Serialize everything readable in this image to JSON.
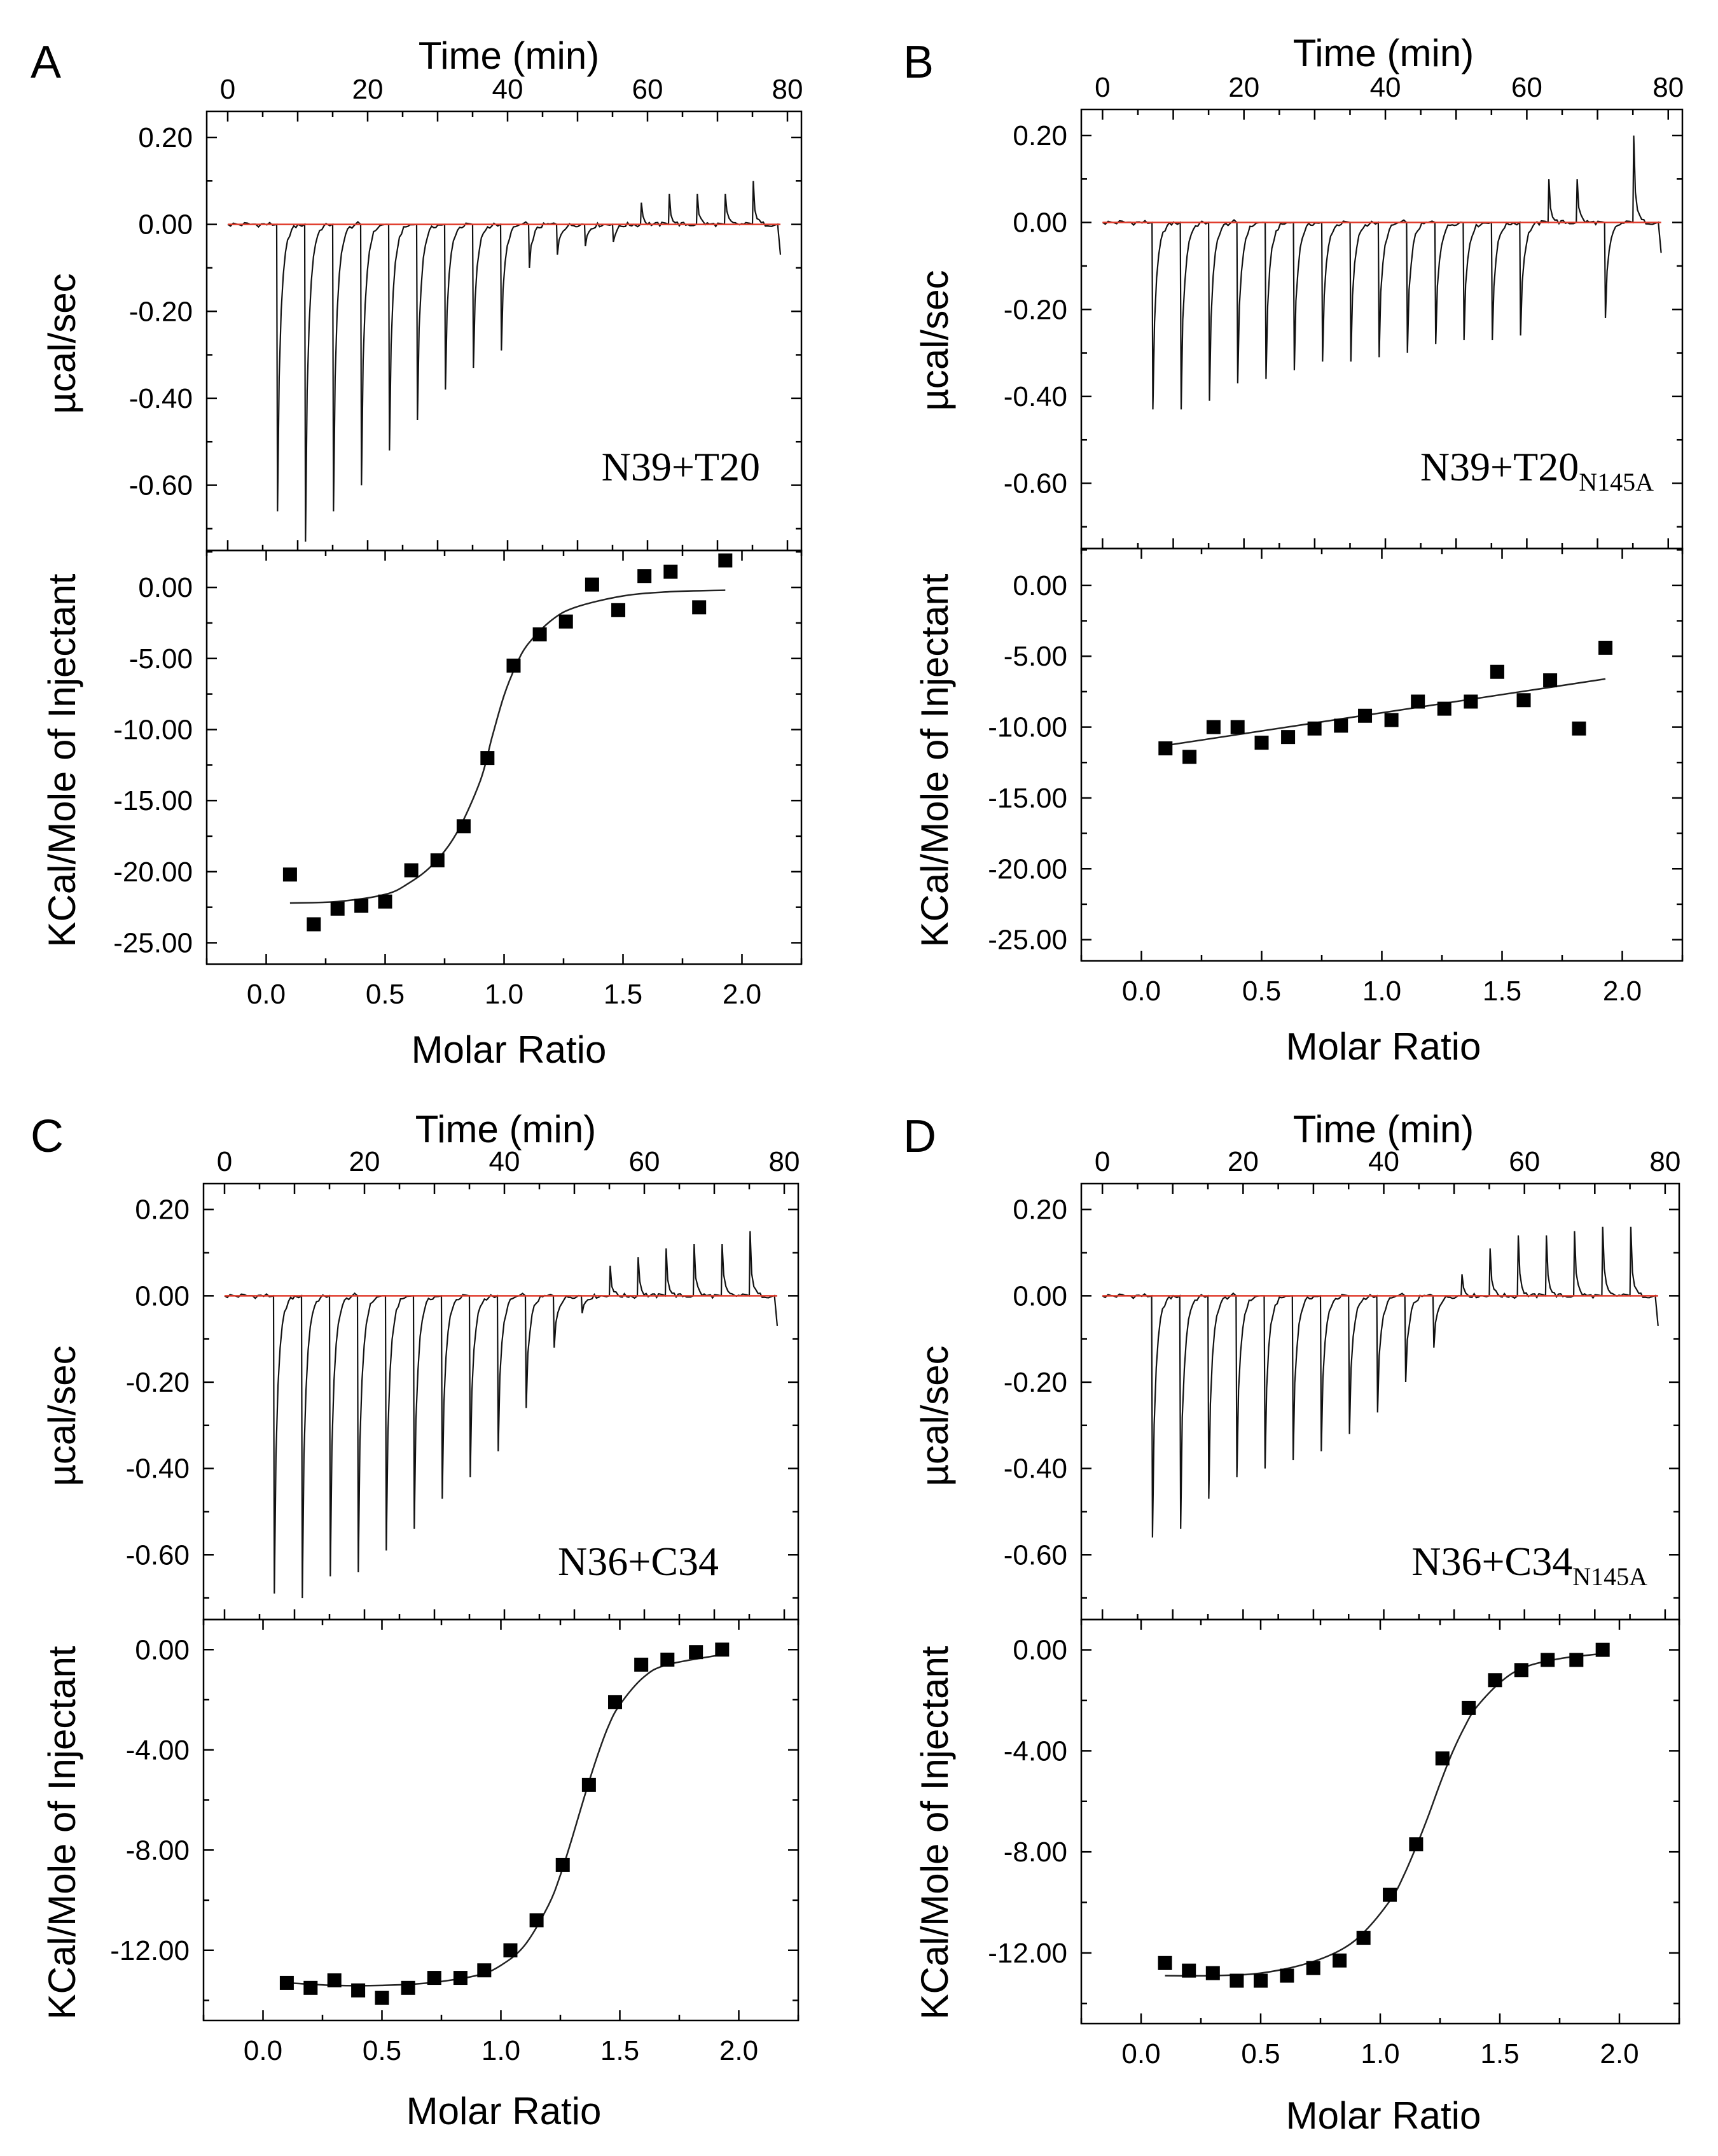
{
  "figure": {
    "shared_labels": {
      "time_axis": "Time (min)",
      "power_axis": "µcal/sec",
      "enthalpy_axis": "KCal/Mole of Injectant",
      "ratio_axis": "Molar Ratio"
    }
  },
  "chart_data": [
    {
      "panel": "A",
      "type": "line",
      "subtype": "isothermal titration calorimetry (raw thermogram + integrated heats)",
      "annotation": {
        "main": "N39+T20",
        "subscript": ""
      },
      "top": {
        "xlabel": "Time (min)",
        "ylabel": "µcal/sec",
        "xlim": [
          -3,
          82
        ],
        "ylim": [
          -0.75,
          0.26
        ],
        "xticks": [
          "0",
          "20",
          "40",
          "60",
          "80"
        ],
        "yticks": [
          "0.20",
          "0.00",
          "-0.20",
          "-0.40",
          "-0.60"
        ],
        "ytick_values": [
          0.2,
          0.0,
          -0.2,
          -0.4,
          -0.6
        ],
        "trace_start": 0,
        "trace_end": 79,
        "injection_times": [
          7,
          11,
          15,
          19,
          23,
          27,
          31,
          35,
          39,
          43,
          47,
          51,
          55,
          59,
          63,
          67,
          71,
          75
        ],
        "injection_peaks": [
          -0.66,
          -0.73,
          -0.66,
          -0.6,
          -0.52,
          -0.45,
          -0.38,
          -0.33,
          -0.29,
          -0.1,
          -0.07,
          -0.05,
          -0.04,
          0.05,
          0.07,
          0.07,
          0.07,
          0.1
        ]
      },
      "bottom": {
        "xlabel": "Molar Ratio",
        "ylabel": "KCal/Mole of Injectant",
        "xlim": [
          -0.25,
          2.25
        ],
        "ylim": [
          -26.5,
          2.6
        ],
        "xticks": [
          "0.0",
          "0.5",
          "1.0",
          "1.5",
          "2.0"
        ],
        "xtick_values": [
          0,
          0.5,
          1,
          1.5,
          2
        ],
        "yticks": [
          "0.00",
          "-5.00",
          "-10.00",
          "-15.00",
          "-20.00",
          "-25.00"
        ],
        "ytick_values": [
          0,
          -5,
          -10,
          -15,
          -20,
          -25
        ],
        "points": {
          "x": [
            0.1,
            0.2,
            0.3,
            0.4,
            0.5,
            0.61,
            0.72,
            0.83,
            0.93,
            1.04,
            1.15,
            1.26,
            1.37,
            1.48,
            1.59,
            1.7,
            1.82,
            1.93
          ],
          "y": [
            -20.2,
            -23.7,
            -22.6,
            -22.4,
            -22.1,
            -19.9,
            -19.2,
            -16.8,
            -12.0,
            -5.5,
            -3.3,
            -2.4,
            0.2,
            -1.6,
            0.8,
            1.1,
            -1.4,
            1.9
          ]
        },
        "fit": {
          "x": [
            0.1,
            0.3,
            0.5,
            0.6,
            0.7,
            0.8,
            0.9,
            0.95,
            1.0,
            1.05,
            1.1,
            1.2,
            1.3,
            1.5,
            1.7,
            1.93
          ],
          "y": [
            -22.2,
            -22.1,
            -21.6,
            -20.8,
            -19.5,
            -17.3,
            -13.6,
            -10.5,
            -7.6,
            -5.5,
            -4.0,
            -2.3,
            -1.4,
            -0.6,
            -0.3,
            -0.2
          ]
        }
      }
    },
    {
      "panel": "B",
      "type": "line",
      "subtype": "isothermal titration calorimetry (raw thermogram + integrated heats)",
      "annotation": {
        "main": "N39+T20",
        "subscript": "N145A"
      },
      "top": {
        "xlabel": "Time (min)",
        "ylabel": "µcal/sec",
        "xlim": [
          -3,
          82
        ],
        "ylim": [
          -0.75,
          0.26
        ],
        "xticks": [
          "0",
          "20",
          "40",
          "60",
          "80"
        ],
        "yticks": [
          "0.20",
          "0.00",
          "-0.20",
          "-0.40",
          "-0.60"
        ],
        "ytick_values": [
          0.2,
          0.0,
          -0.2,
          -0.4,
          -0.6
        ],
        "trace_start": 0,
        "trace_end": 79,
        "injection_times": [
          7,
          11,
          15,
          19,
          23,
          27,
          31,
          35,
          39,
          43,
          47,
          51,
          55,
          59,
          63,
          67,
          71,
          75
        ],
        "injection_peaks": [
          -0.43,
          -0.43,
          -0.41,
          -0.37,
          -0.36,
          -0.34,
          -0.32,
          -0.32,
          -0.31,
          -0.3,
          -0.28,
          -0.27,
          -0.27,
          -0.26,
          0.1,
          0.1,
          -0.22,
          0.2
        ]
      },
      "bottom": {
        "xlabel": "Molar Ratio",
        "ylabel": "KCal/Mole of Injectant",
        "xlim": [
          -0.25,
          2.25
        ],
        "ylim": [
          -26.5,
          2.6
        ],
        "xticks": [
          "0.0",
          "0.5",
          "1.0",
          "1.5",
          "2.0"
        ],
        "xtick_values": [
          0,
          0.5,
          1,
          1.5,
          2
        ],
        "yticks": [
          "0.00",
          "-5.00",
          "-10.00",
          "-15.00",
          "-20.00",
          "-25.00"
        ],
        "ytick_values": [
          0,
          -5,
          -10,
          -15,
          -20,
          -25
        ],
        "points": {
          "x": [
            0.1,
            0.2,
            0.3,
            0.4,
            0.5,
            0.61,
            0.72,
            0.83,
            0.93,
            1.04,
            1.15,
            1.26,
            1.37,
            1.48,
            1.59,
            1.7,
            1.82,
            1.93
          ],
          "y": [
            -11.5,
            -12.1,
            -10.0,
            -10.0,
            -11.1,
            -10.7,
            -10.1,
            -9.9,
            -9.2,
            -9.5,
            -8.2,
            -8.7,
            -8.2,
            -6.1,
            -8.1,
            -6.7,
            -10.1,
            -4.4
          ]
        },
        "fit": {
          "x": [
            0.1,
            1.93
          ],
          "y": [
            -11.3,
            -6.6
          ]
        }
      }
    },
    {
      "panel": "C",
      "type": "line",
      "subtype": "isothermal titration calorimetry (raw thermogram + integrated heats)",
      "annotation": {
        "main": "N36+C34",
        "subscript": ""
      },
      "top": {
        "xlabel": "Time (min)",
        "ylabel": "µcal/sec",
        "xlim": [
          -3,
          82
        ],
        "ylim": [
          -0.75,
          0.26
        ],
        "xticks": [
          "0",
          "20",
          "40",
          "60",
          "80"
        ],
        "yticks": [
          "0.20",
          "0.00",
          "-0.20",
          "-0.40",
          "-0.60"
        ],
        "ytick_values": [
          0.2,
          0.0,
          -0.2,
          -0.4,
          -0.6
        ],
        "trace_start": 0,
        "trace_end": 79,
        "injection_times": [
          7,
          11,
          15,
          19,
          23,
          27,
          31,
          35,
          39,
          43,
          47,
          51,
          55,
          59,
          63,
          67,
          71,
          75
        ],
        "injection_peaks": [
          -0.69,
          -0.7,
          -0.65,
          -0.64,
          -0.59,
          -0.54,
          -0.47,
          -0.42,
          -0.36,
          -0.26,
          -0.12,
          -0.04,
          0.07,
          0.09,
          0.11,
          0.12,
          0.12,
          0.15
        ]
      },
      "bottom": {
        "xlabel": "Molar Ratio",
        "ylabel": "KCal/Mole of Injectant",
        "xlim": [
          -0.25,
          2.25
        ],
        "ylim": [
          -14.8,
          1.2
        ],
        "xticks": [
          "0.0",
          "0.5",
          "1.0",
          "1.5",
          "2.0"
        ],
        "xtick_values": [
          0,
          0.5,
          1,
          1.5,
          2
        ],
        "yticks": [
          "0.00",
          "-4.00",
          "-8.00",
          "-12.00"
        ],
        "ytick_values": [
          0,
          -4,
          -8,
          -12
        ],
        "points": {
          "x": [
            0.1,
            0.2,
            0.3,
            0.4,
            0.5,
            0.61,
            0.72,
            0.83,
            0.93,
            1.04,
            1.15,
            1.26,
            1.37,
            1.48,
            1.59,
            1.7,
            1.82,
            1.93
          ],
          "y": [
            -13.3,
            -13.5,
            -13.2,
            -13.6,
            -13.9,
            -13.5,
            -13.1,
            -13.1,
            -12.8,
            -12.0,
            -10.8,
            -8.6,
            -5.4,
            -2.1,
            -0.6,
            -0.4,
            -0.1,
            0.0
          ]
        },
        "fit": {
          "x": [
            0.1,
            0.3,
            0.5,
            0.7,
            0.9,
            1.0,
            1.1,
            1.2,
            1.25,
            1.3,
            1.35,
            1.4,
            1.45,
            1.5,
            1.6,
            1.7,
            1.93
          ],
          "y": [
            -13.3,
            -13.4,
            -13.4,
            -13.3,
            -13.0,
            -12.6,
            -11.8,
            -10.2,
            -9.0,
            -7.5,
            -5.9,
            -4.4,
            -3.1,
            -2.2,
            -1.1,
            -0.6,
            -0.2
          ]
        }
      }
    },
    {
      "panel": "D",
      "type": "line",
      "subtype": "isothermal titration calorimetry (raw thermogram + integrated heats)",
      "annotation": {
        "main": "N36+C34",
        "subscript": "N145A"
      },
      "top": {
        "xlabel": "Time (min)",
        "ylabel": "µcal/sec",
        "xlim": [
          -3,
          82
        ],
        "ylim": [
          -0.75,
          0.26
        ],
        "xticks": [
          "0",
          "20",
          "40",
          "60",
          "80"
        ],
        "yticks": [
          "0.20",
          "0.00",
          "-0.20",
          "-0.40",
          "-0.60"
        ],
        "ytick_values": [
          0.2,
          0.0,
          -0.2,
          -0.4,
          -0.6
        ],
        "trace_start": 0,
        "trace_end": 79,
        "injection_times": [
          7,
          11,
          15,
          19,
          23,
          27,
          31,
          35,
          39,
          43,
          47,
          51,
          55,
          59,
          63,
          67,
          71,
          75
        ],
        "injection_peaks": [
          -0.56,
          -0.54,
          -0.47,
          -0.42,
          -0.4,
          -0.38,
          -0.36,
          -0.32,
          -0.27,
          -0.2,
          -0.12,
          0.05,
          0.11,
          0.14,
          0.14,
          0.15,
          0.16,
          0.16
        ]
      },
      "bottom": {
        "xlabel": "Molar Ratio",
        "ylabel": "KCal/Mole of Injectant",
        "xlim": [
          -0.25,
          2.25
        ],
        "ylim": [
          -14.8,
          1.2
        ],
        "xticks": [
          "0.0",
          "0.5",
          "1.0",
          "1.5",
          "2.0"
        ],
        "xtick_values": [
          0,
          0.5,
          1,
          1.5,
          2
        ],
        "yticks": [
          "0.00",
          "-4.00",
          "-8.00",
          "-12.00"
        ],
        "ytick_values": [
          0,
          -4,
          -8,
          -12
        ],
        "points": {
          "x": [
            0.1,
            0.2,
            0.3,
            0.4,
            0.5,
            0.61,
            0.72,
            0.83,
            0.93,
            1.04,
            1.15,
            1.26,
            1.37,
            1.48,
            1.59,
            1.7,
            1.82,
            1.93
          ],
          "y": [
            -12.4,
            -12.7,
            -12.8,
            -13.1,
            -13.1,
            -12.9,
            -12.6,
            -12.3,
            -11.4,
            -9.7,
            -7.7,
            -4.3,
            -2.3,
            -1.2,
            -0.8,
            -0.4,
            -0.4,
            0.0
          ]
        },
        "fit": {
          "x": [
            0.1,
            0.3,
            0.5,
            0.7,
            0.85,
            0.95,
            1.05,
            1.1,
            1.15,
            1.2,
            1.25,
            1.3,
            1.35,
            1.4,
            1.5,
            1.6,
            1.75,
            1.93
          ],
          "y": [
            -12.9,
            -12.9,
            -12.8,
            -12.4,
            -11.8,
            -11.0,
            -9.8,
            -8.9,
            -7.8,
            -6.6,
            -5.3,
            -4.1,
            -3.1,
            -2.3,
            -1.3,
            -0.7,
            -0.35,
            -0.15
          ]
        }
      }
    }
  ]
}
